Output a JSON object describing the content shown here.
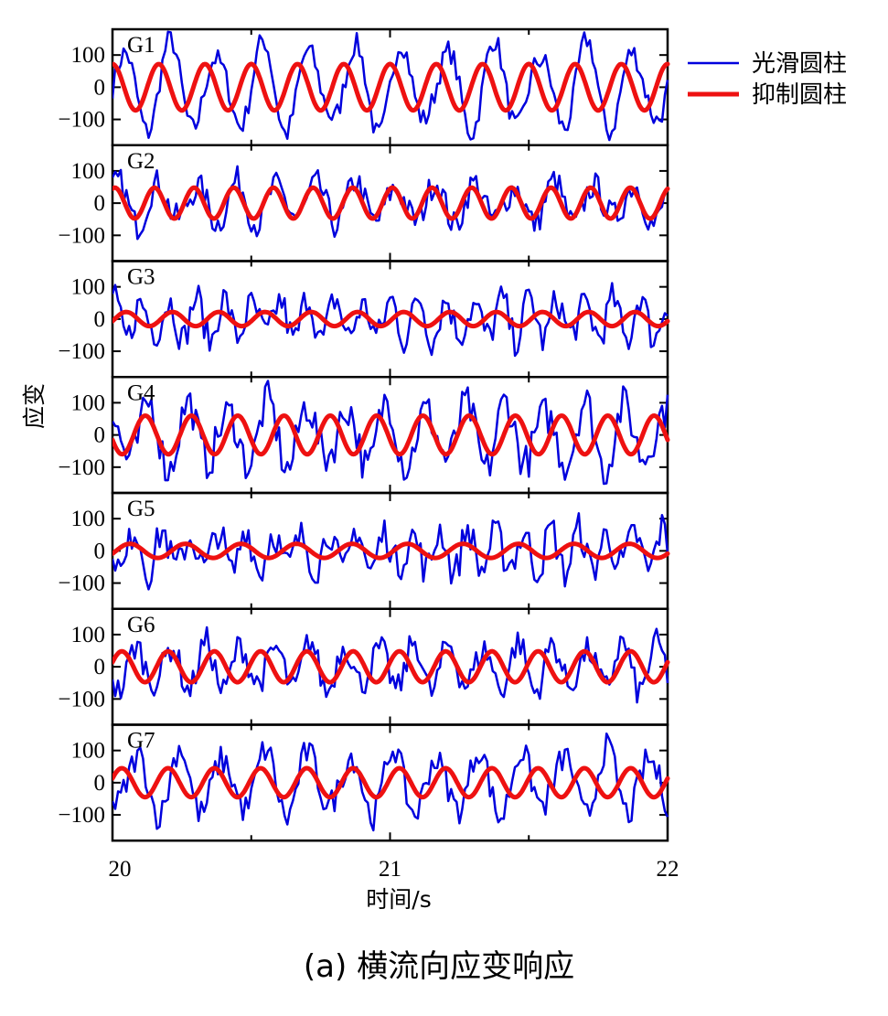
{
  "caption": "(a)  横流向应变响应",
  "chart_data": {
    "type": "line",
    "title": "(a)  横流向应变响应",
    "xlabel": "时间/s",
    "ylabel": "应变",
    "xlim": [
      20,
      22
    ],
    "x_ticks": [
      20,
      21,
      22
    ],
    "ylim": [
      -180,
      180
    ],
    "y_ticks": [
      100,
      0,
      -100
    ],
    "y_tick_labels": [
      "100",
      "0",
      "−100"
    ],
    "legend_position": "top-right",
    "series_styles": [
      {
        "name": "光滑圆柱",
        "color": "#0000dd",
        "width": 2.5
      },
      {
        "name": "抑制圆柱",
        "color": "#ee1111",
        "width": 5
      }
    ],
    "panels": [
      {
        "label": "G1",
        "smooth": {
          "freq_hz": 6.0,
          "amp": 150,
          "noise": 35
        },
        "suppressed": {
          "freq_hz": 6.0,
          "amp": 72,
          "phase": 1.57
        }
      },
      {
        "label": "G2",
        "smooth": {
          "freq_hz": 7.0,
          "amp": 70,
          "noise": 45
        },
        "suppressed": {
          "freq_hz": 7.0,
          "amp": 48,
          "phase": 1.2
        }
      },
      {
        "label": "G3",
        "smooth": {
          "freq_hz": 10.0,
          "amp": 70,
          "noise": 50
        },
        "suppressed": {
          "freq_hz": 6.0,
          "amp": 22,
          "phase": -0.3
        }
      },
      {
        "label": "G4",
        "smooth": {
          "freq_hz": 7.0,
          "amp": 110,
          "noise": 60
        },
        "suppressed": {
          "freq_hz": 6.0,
          "amp": 60,
          "phase": 3.4
        }
      },
      {
        "label": "G5",
        "smooth": {
          "freq_hz": 10.0,
          "amp": 70,
          "noise": 55
        },
        "suppressed": {
          "freq_hz": 5.0,
          "amp": 22,
          "phase": -0.4
        }
      },
      {
        "label": "G6",
        "smooth": {
          "freq_hz": 8.0,
          "amp": 80,
          "noise": 45
        },
        "suppressed": {
          "freq_hz": 6.0,
          "amp": 48,
          "phase": 0.3
        }
      },
      {
        "label": "G7",
        "smooth": {
          "freq_hz": 6.5,
          "amp": 110,
          "noise": 45
        },
        "suppressed": {
          "freq_hz": 6.0,
          "amp": 45,
          "phase": 0.3
        }
      }
    ]
  }
}
